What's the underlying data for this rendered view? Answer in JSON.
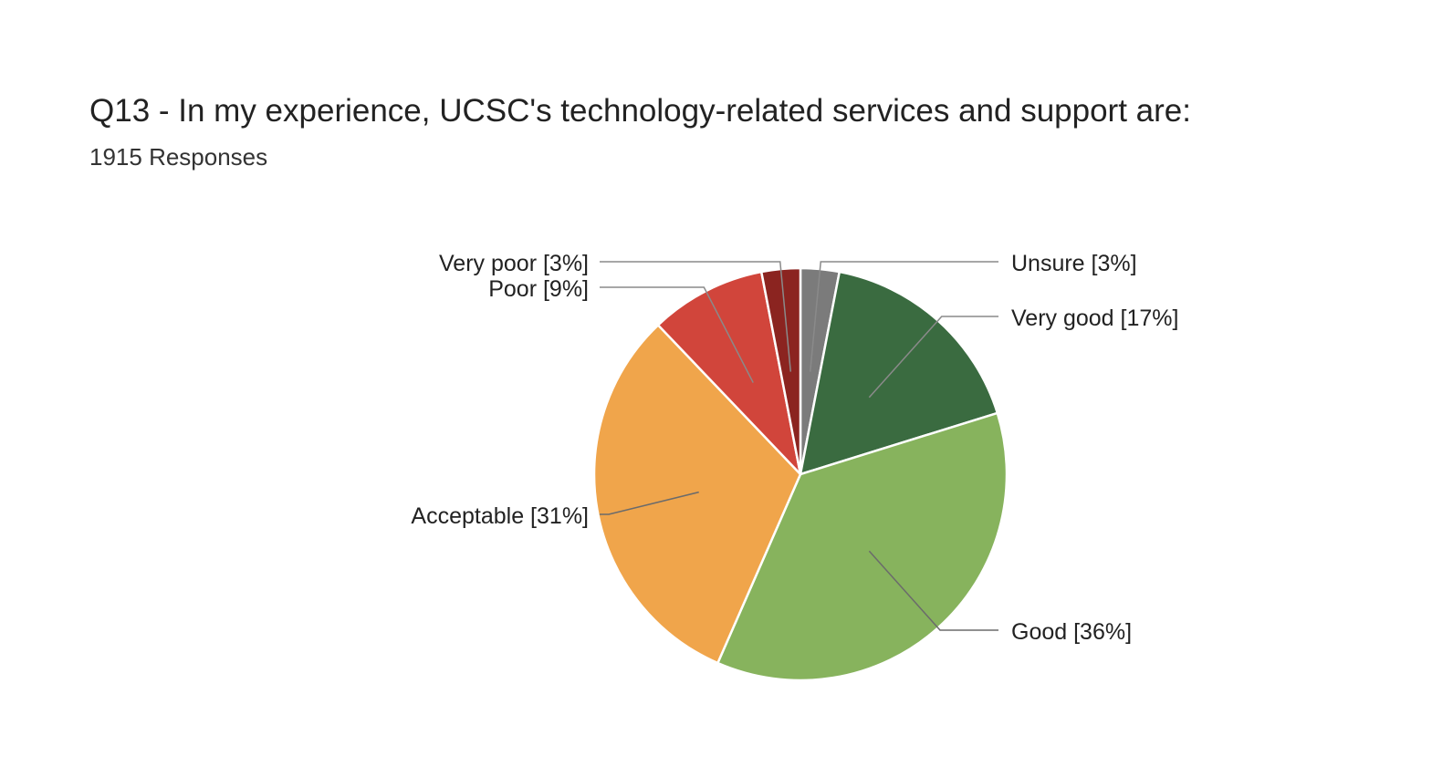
{
  "title": "Q13 - In my experience, UCSC's technology-related services and support are:",
  "subtitle": "1915 Responses",
  "chart_data": {
    "type": "pie",
    "title": "Q13 - In my experience, UCSC's technology-related services and support are:",
    "subtitle": "1915 Responses",
    "start_angle_deg": 0,
    "direction": "clockwise",
    "slices": [
      {
        "label": "Unsure",
        "value": 3,
        "display": "Unsure [3%]",
        "color": "#7b7b7b"
      },
      {
        "label": "Very good",
        "value": 17,
        "display": "Very good [17%]",
        "color": "#3a6b40"
      },
      {
        "label": "Good",
        "value": 36,
        "display": "Good [36%]",
        "color": "#87b35d"
      },
      {
        "label": "Acceptable",
        "value": 31,
        "display": "Acceptable [31%]",
        "color": "#f0a54b"
      },
      {
        "label": "Poor",
        "value": 9,
        "display": "Poor [9%]",
        "color": "#d1453b"
      },
      {
        "label": "Very poor",
        "value": 3,
        "display": "Very poor [3%]",
        "color": "#8b2420"
      }
    ]
  }
}
